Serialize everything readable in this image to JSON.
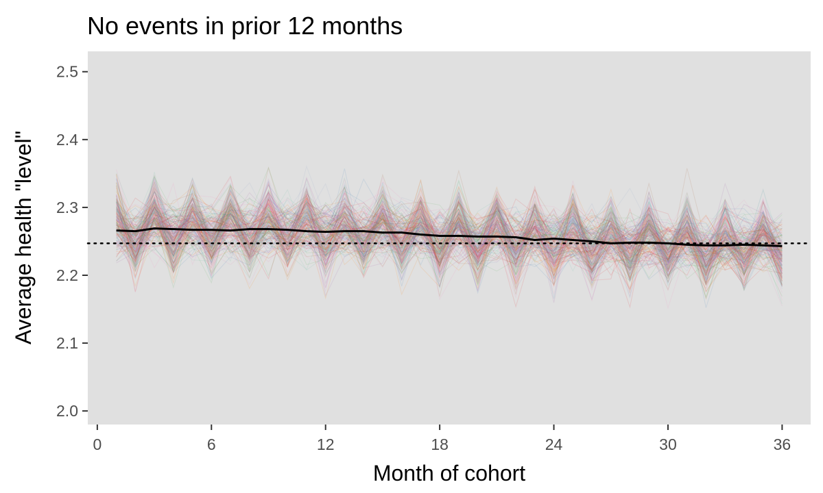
{
  "chart_data": {
    "type": "line",
    "title": "No events in prior 12 months",
    "xlabel": "Month of cohort",
    "ylabel": "Average health \"level\"",
    "xlim": [
      -0.5,
      37.5
    ],
    "ylim": [
      1.98,
      2.53
    ],
    "x_ticks": [
      0,
      6,
      12,
      18,
      24,
      30,
      36
    ],
    "y_ticks": [
      2.0,
      2.1,
      2.2,
      2.3,
      2.4,
      2.5
    ],
    "y_tick_labels": [
      "2.0",
      "2.1",
      "2.2",
      "2.3",
      "2.4",
      "2.5"
    ],
    "background_color": "#e0e0e0",
    "grid": false,
    "legend": "none",
    "reference_line": {
      "y": 2.247,
      "style": "dotted",
      "color": "#000000"
    },
    "simulated_bundle": {
      "description_of_marks": "many faint multicolored simulation paths",
      "spread_sd": 0.035,
      "colors": [
        "#e41a1c",
        "#377eb8",
        "#4daf4a",
        "#984ea3",
        "#ff7f00",
        "#a65628",
        "#f781bf",
        "#66c2a5",
        "#8da0cb",
        "#e78ac3"
      ]
    },
    "series": [
      {
        "color": "#000000",
        "x": [
          1,
          2,
          3,
          4,
          5,
          6,
          7,
          8,
          9,
          10,
          11,
          12,
          13,
          14,
          15,
          16,
          17,
          18,
          19,
          20,
          21,
          22,
          23,
          24,
          25,
          26,
          27,
          28,
          29,
          30,
          31,
          32,
          33,
          34,
          35,
          36
        ],
        "values": [
          2.266,
          2.265,
          2.269,
          2.268,
          2.267,
          2.267,
          2.266,
          2.268,
          2.268,
          2.267,
          2.265,
          2.264,
          2.265,
          2.265,
          2.263,
          2.263,
          2.26,
          2.258,
          2.258,
          2.257,
          2.257,
          2.256,
          2.252,
          2.254,
          2.252,
          2.25,
          2.247,
          2.248,
          2.248,
          2.247,
          2.245,
          2.244,
          2.244,
          2.245,
          2.244,
          2.243
        ]
      }
    ]
  }
}
